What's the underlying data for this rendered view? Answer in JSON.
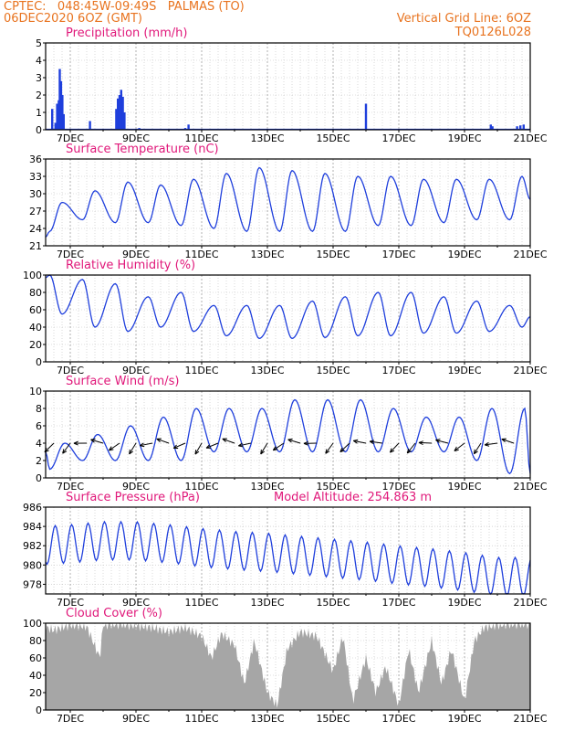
{
  "header": {
    "line1_left": "CPTEC:   048:45W-09:49S   PALMAS (TO)",
    "line2_left": "06DEC2020 6OZ (GMT)",
    "line1_right": "Vertical Grid Line: 6OZ",
    "line2_right": "TQ0126L028"
  },
  "x_axis": {
    "x_start_day": 6.25,
    "x_end_day": 21.0,
    "tick_days": [
      7,
      9,
      11,
      13,
      15,
      17,
      19,
      21
    ],
    "tick_labels": [
      "7DEC",
      "9DEC",
      "11DEC",
      "13DEC",
      "15DEC",
      "17DEC",
      "19DEC",
      "21DEC"
    ]
  },
  "panels": {
    "precip": {
      "title": "Precipitation (mm/h)",
      "yticks": [
        "0",
        "1",
        "2",
        "3",
        "4",
        "5"
      ]
    },
    "temp": {
      "title": "Surface Temperature (nC)",
      "yticks": [
        "21",
        "24",
        "27",
        "30",
        "33",
        "36"
      ]
    },
    "rh": {
      "title": "Relative Humidity (%)",
      "yticks": [
        "0",
        "20",
        "40",
        "60",
        "80",
        "100"
      ]
    },
    "wind": {
      "title": "Surface Wind (m/s)",
      "yticks": [
        "0",
        "2",
        "4",
        "6",
        "8",
        "10"
      ]
    },
    "pressure": {
      "title": "Surface Pressure (hPa)",
      "extra": "Model Altitude: 254.863 m",
      "yticks": [
        "978",
        "980",
        "982",
        "984",
        "986"
      ]
    },
    "cloud": {
      "title": "Cloud Cover (%)",
      "yticks": [
        "0",
        "20",
        "40",
        "60",
        "80",
        "100"
      ]
    }
  },
  "chart_data": [
    {
      "type": "bar",
      "title": "Precipitation (mm/h)",
      "ylim": [
        0,
        5
      ],
      "x_units": "day of December 2020",
      "points": [
        [
          6.45,
          1.2
        ],
        [
          6.55,
          0.4
        ],
        [
          6.6,
          1.5
        ],
        [
          6.65,
          1.7
        ],
        [
          6.68,
          3.5
        ],
        [
          6.72,
          2.8
        ],
        [
          6.76,
          2.0
        ],
        [
          6.8,
          0.9
        ],
        [
          7.6,
          0.5
        ],
        [
          8.4,
          1.2
        ],
        [
          8.45,
          1.8
        ],
        [
          8.5,
          2.0
        ],
        [
          8.55,
          2.3
        ],
        [
          8.6,
          1.9
        ],
        [
          8.65,
          1.0
        ],
        [
          9.1,
          0.1
        ],
        [
          10.5,
          0.1
        ],
        [
          10.6,
          0.3
        ],
        [
          16.0,
          1.5
        ],
        [
          18.2,
          0.05
        ],
        [
          19.8,
          0.3
        ],
        [
          19.85,
          0.2
        ],
        [
          20.6,
          0.2
        ],
        [
          20.7,
          0.25
        ],
        [
          20.8,
          0.3
        ]
      ]
    },
    {
      "type": "line",
      "title": "Surface Temperature (nC)",
      "ylim": [
        21,
        36
      ],
      "daily_pattern": {
        "min_hour_gmt": 9,
        "max_hour_gmt": 18
      },
      "daily_min": [
        23.5,
        25.5,
        25.0,
        25.0,
        24.5,
        24.0,
        23.5,
        23.5,
        23.5,
        23.5,
        24.5,
        24.5,
        25.0,
        25.5,
        25.5
      ],
      "daily_max": [
        28.5,
        30.5,
        32.0,
        31.5,
        32.5,
        33.5,
        34.5,
        34.0,
        33.5,
        33.0,
        33.0,
        32.5,
        32.5,
        32.5,
        33.0
      ],
      "start": 22.5,
      "end": 29.0
    },
    {
      "type": "line",
      "title": "Relative Humidity (%)",
      "ylim": [
        0,
        100
      ],
      "daily_min": [
        55,
        40,
        35,
        40,
        35,
        30,
        27,
        27,
        28,
        30,
        30,
        33,
        33,
        35,
        40
      ],
      "daily_max": [
        100,
        95,
        90,
        75,
        80,
        65,
        65,
        65,
        70,
        75,
        80,
        80,
        75,
        70,
        65
      ],
      "start": 97,
      "end": 52
    },
    {
      "type": "line",
      "title": "Surface Wind (m/s)",
      "ylim": [
        0,
        10
      ],
      "daily_min": [
        1,
        2,
        2,
        2,
        2,
        3,
        3,
        3,
        3,
        3,
        3,
        3,
        3,
        2,
        0.5
      ],
      "daily_max": [
        4,
        5,
        6,
        7,
        8,
        8,
        8,
        9,
        9,
        9,
        8,
        7,
        7,
        8,
        8
      ],
      "arrows_note": "direction arrows every 12h"
    },
    {
      "type": "line",
      "title": "Surface Pressure (hPa)",
      "ylim": [
        977,
        986
      ],
      "semidiurnal": true,
      "daily_mean": [
        982.0,
        982.2,
        982.5,
        982.5,
        982.2,
        981.8,
        981.5,
        981.3,
        981.0,
        980.7,
        980.4,
        980.0,
        979.7,
        979.3,
        978.8
      ],
      "amplitude": 2.2
    },
    {
      "type": "area",
      "title": "Cloud Cover (%)",
      "ylim": [
        0,
        100
      ],
      "segments_day_value": [
        [
          6.25,
          95
        ],
        [
          6.5,
          92
        ],
        [
          7.0,
          98
        ],
        [
          7.5,
          96
        ],
        [
          7.9,
          60
        ],
        [
          8.0,
          98
        ],
        [
          8.5,
          99
        ],
        [
          9.0,
          97
        ],
        [
          9.5,
          95
        ],
        [
          10.0,
          90
        ],
        [
          10.5,
          95
        ],
        [
          11.0,
          85
        ],
        [
          11.3,
          60
        ],
        [
          11.6,
          88
        ],
        [
          12.0,
          75
        ],
        [
          12.3,
          30
        ],
        [
          12.6,
          80
        ],
        [
          13.0,
          20
        ],
        [
          13.3,
          5
        ],
        [
          13.6,
          70
        ],
        [
          14.0,
          90
        ],
        [
          14.5,
          85
        ],
        [
          15.0,
          45
        ],
        [
          15.3,
          85
        ],
        [
          15.6,
          10
        ],
        [
          16.0,
          60
        ],
        [
          16.3,
          20
        ],
        [
          16.6,
          50
        ],
        [
          17.0,
          5
        ],
        [
          17.3,
          70
        ],
        [
          17.6,
          20
        ],
        [
          18.0,
          80
        ],
        [
          18.3,
          30
        ],
        [
          18.6,
          70
        ],
        [
          19.0,
          10
        ],
        [
          19.3,
          80
        ],
        [
          19.6,
          95
        ],
        [
          20.0,
          98
        ],
        [
          20.5,
          99
        ],
        [
          21.0,
          99
        ]
      ]
    }
  ]
}
